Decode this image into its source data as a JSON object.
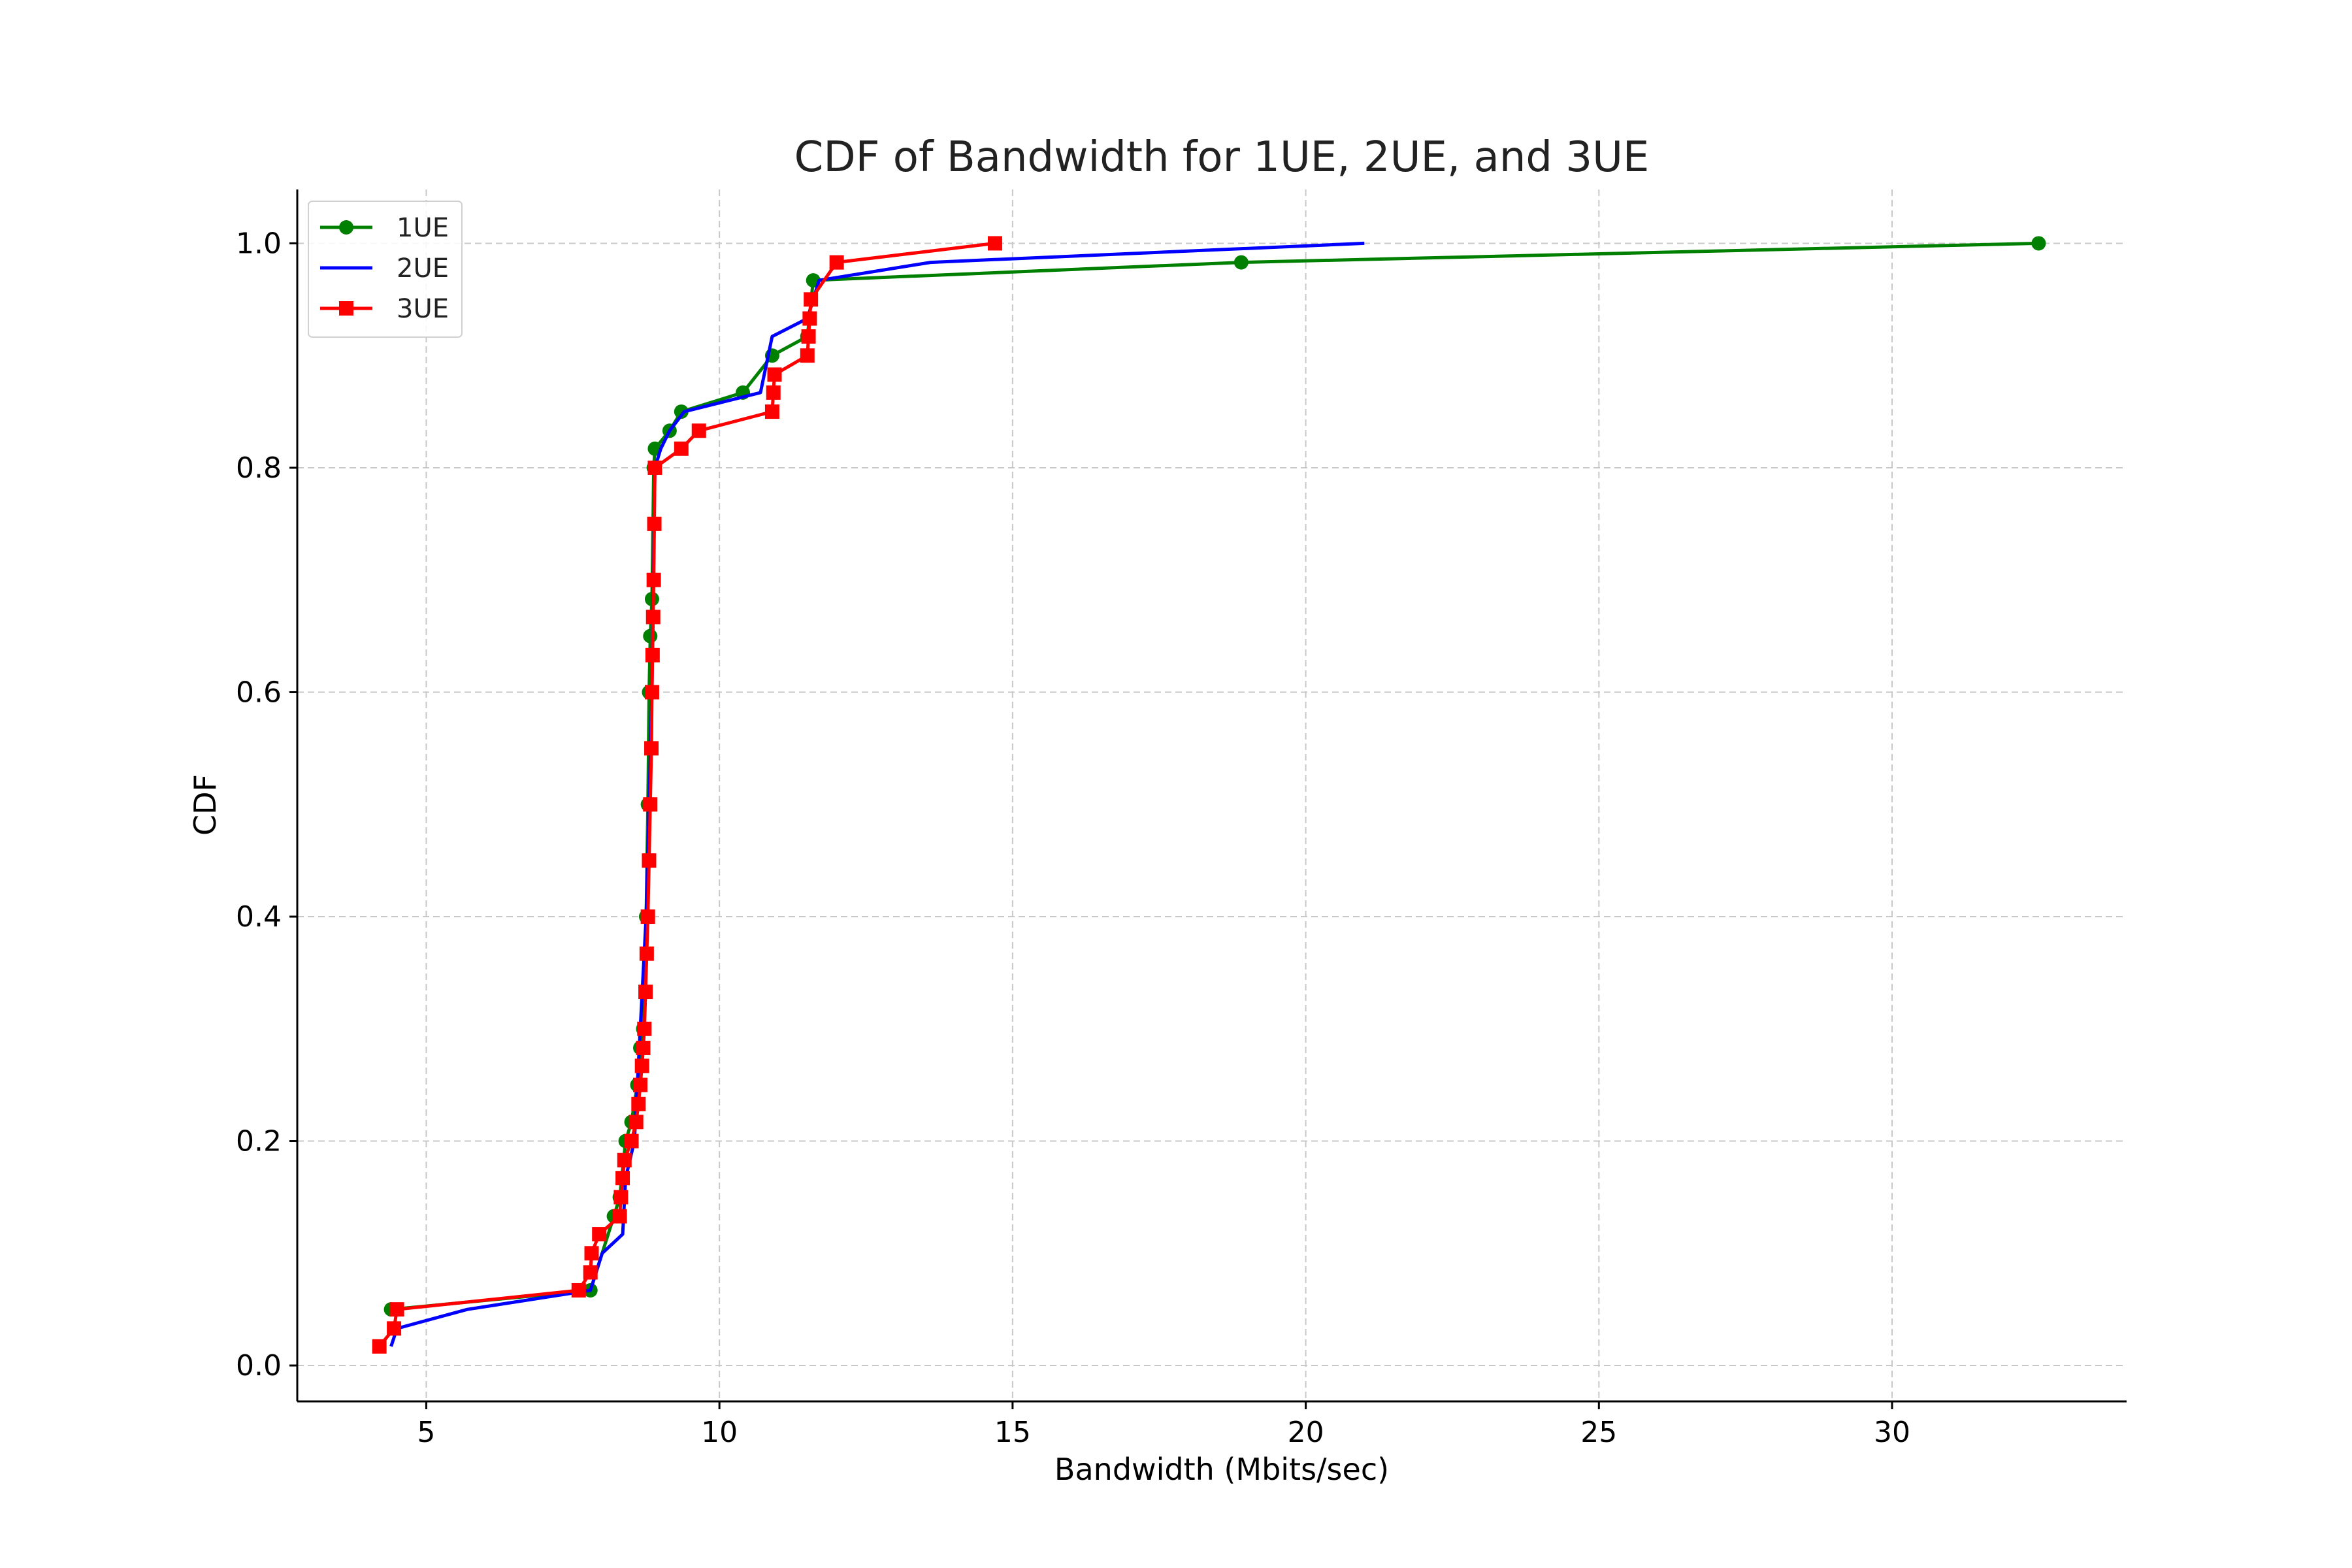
{
  "chart_data": {
    "type": "line",
    "title": "CDF of Bandwidth for 1UE, 2UE, and 3UE",
    "xlabel": "Bandwidth (Mbits/sec)",
    "ylabel": "CDF",
    "xlim": [
      2.8,
      34.0
    ],
    "ylim": [
      -0.032,
      1.048
    ],
    "xticks": [
      5,
      10,
      15,
      20,
      25,
      30
    ],
    "yticks": [
      0.0,
      0.2,
      0.4,
      0.6,
      0.8,
      1.0
    ],
    "grid": true,
    "legend_position": "top-left",
    "series": [
      {
        "name": "1UE",
        "color": "#008000",
        "marker": "circle",
        "x": [
          4.4,
          7.8,
          8.2,
          8.3,
          8.4,
          8.5,
          8.6,
          8.65,
          8.7,
          8.75,
          8.78,
          8.8,
          8.82,
          8.85,
          8.88,
          8.9,
          9.15,
          9.35,
          10.4,
          10.9,
          11.5,
          11.6,
          18.9,
          32.5
        ],
        "y": [
          0.05,
          0.067,
          0.133,
          0.15,
          0.2,
          0.217,
          0.25,
          0.283,
          0.3,
          0.4,
          0.5,
          0.6,
          0.65,
          0.683,
          0.8,
          0.817,
          0.833,
          0.85,
          0.867,
          0.9,
          0.917,
          0.967,
          0.983,
          1.0
        ]
      },
      {
        "name": "2UE",
        "color": "#0000ff",
        "marker": "none",
        "x": [
          4.4,
          4.5,
          5.7,
          7.8,
          8.0,
          8.35,
          8.4,
          8.55,
          8.65,
          8.75,
          8.8,
          8.85,
          8.9,
          9.0,
          9.15,
          9.4,
          10.7,
          10.9,
          11.5,
          11.7,
          13.6,
          21.0
        ],
        "y": [
          0.017,
          0.033,
          0.05,
          0.067,
          0.1,
          0.117,
          0.167,
          0.2,
          0.3,
          0.4,
          0.5,
          0.6,
          0.8,
          0.817,
          0.833,
          0.85,
          0.867,
          0.917,
          0.933,
          0.967,
          0.983,
          1.0
        ]
      },
      {
        "name": "3UE",
        "color": "#ff0000",
        "marker": "square",
        "x": [
          4.2,
          4.45,
          4.5,
          7.6,
          7.8,
          7.82,
          7.95,
          8.3,
          8.32,
          8.35,
          8.38,
          8.5,
          8.58,
          8.62,
          8.65,
          8.68,
          8.7,
          8.72,
          8.74,
          8.76,
          8.78,
          8.8,
          8.82,
          8.84,
          8.85,
          8.86,
          8.87,
          8.88,
          8.89,
          8.9,
          9.35,
          9.65,
          10.9,
          10.92,
          10.94,
          11.5,
          11.52,
          11.54,
          11.56,
          12.0,
          14.7
        ],
        "y": [
          0.017,
          0.033,
          0.05,
          0.067,
          0.083,
          0.1,
          0.117,
          0.133,
          0.15,
          0.167,
          0.183,
          0.2,
          0.217,
          0.233,
          0.25,
          0.267,
          0.283,
          0.3,
          0.333,
          0.367,
          0.4,
          0.45,
          0.5,
          0.55,
          0.6,
          0.633,
          0.667,
          0.7,
          0.75,
          0.8,
          0.817,
          0.833,
          0.85,
          0.867,
          0.883,
          0.9,
          0.917,
          0.933,
          0.95,
          0.983,
          1.0
        ]
      }
    ]
  }
}
